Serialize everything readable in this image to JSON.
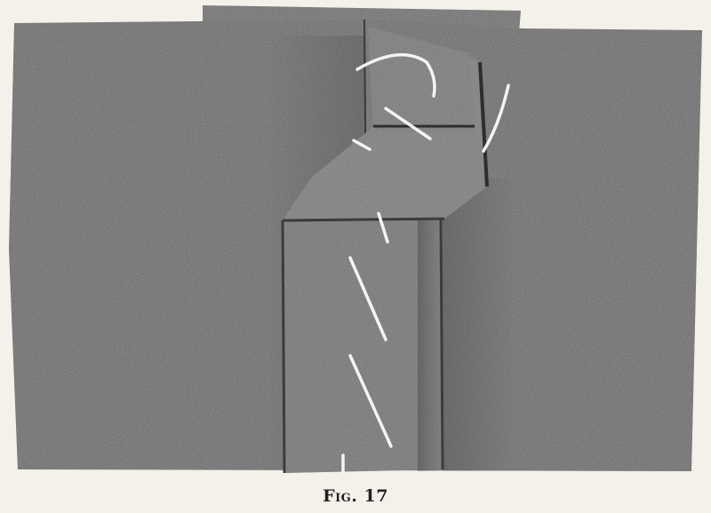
{
  "figure": {
    "caption": "Fig. 17"
  }
}
